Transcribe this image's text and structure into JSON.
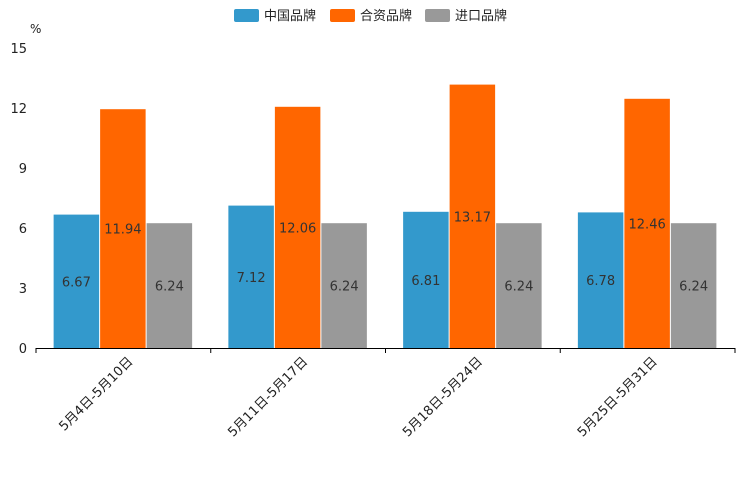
{
  "chart_data": {
    "type": "bar",
    "title": "",
    "xlabel": "",
    "ylabel": "%",
    "ylim": [
      0,
      15
    ],
    "yticks": [
      0,
      3,
      6,
      9,
      12,
      15
    ],
    "grid": false,
    "legend_position": "top-center",
    "categories": [
      "5月4日-5月10日",
      "5月11日-5月17日",
      "5月18日-5月24日",
      "5月25日-5月31日"
    ],
    "series": [
      {
        "name": "中国品牌",
        "color": "#3399cc",
        "values": [
          6.67,
          7.12,
          6.81,
          6.78
        ]
      },
      {
        "name": "合资品牌",
        "color": "#ff6600",
        "values": [
          11.94,
          12.06,
          13.17,
          12.46
        ]
      },
      {
        "name": "进口品牌",
        "color": "#999999",
        "values": [
          6.24,
          6.24,
          6.24,
          6.24
        ]
      }
    ]
  }
}
